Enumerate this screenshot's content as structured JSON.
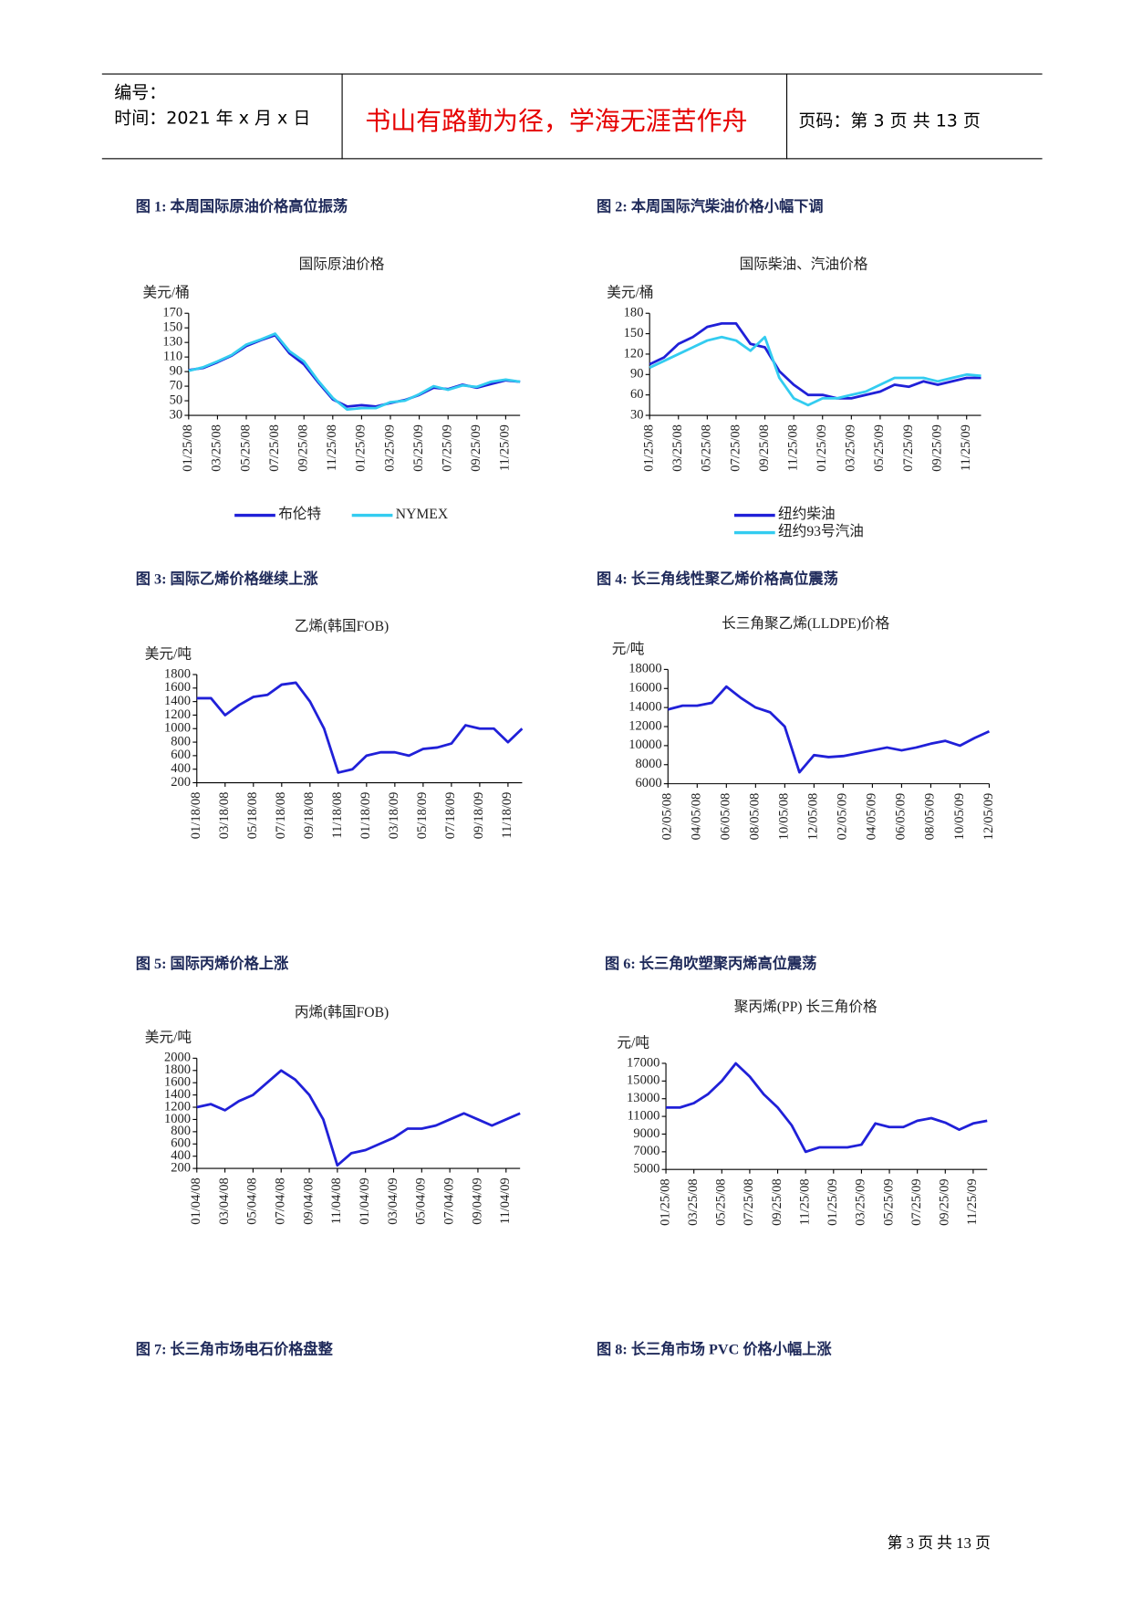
{
  "header": {
    "number_label": "编号：",
    "time": "时间：2021 年 x 月 x 日",
    "motto": "书山有路勤为径，学海无涯苦作舟",
    "page": "页码：第 3 页  共 13 页"
  },
  "captions": [
    "图 1:  本周国际原油价格高位振荡",
    "图 2:  本周国际汽柴油价格小幅下调",
    "图 3:  国际乙烯价格继续上涨",
    "图 4:  长三角线性聚乙烯价格高位震荡",
    "图 5:  国际丙烯价格上涨",
    "图 6:  长三角吹塑聚丙烯高位震荡",
    "图 7:  长三角市场电石价格盘整",
    "图 8:  长三角市场 PVC 价格小幅上涨"
  ],
  "chart_data": [
    {
      "type": "line",
      "title": "国际原油价格",
      "y_label": "美元/桶",
      "categories": [
        "01/25/08",
        null,
        "03/25/08",
        null,
        "05/25/08",
        null,
        "07/25/08",
        null,
        "09/25/08",
        null,
        "11/25/08",
        null,
        "01/25/09",
        null,
        "03/25/09",
        null,
        "05/25/09",
        null,
        "07/25/09",
        null,
        "09/25/09",
        null,
        "11/25/09",
        null
      ],
      "series": [
        {
          "name": "布伦特",
          "color": "#2020d8",
          "values": [
            92,
            95,
            103,
            112,
            125,
            133,
            140,
            115,
            100,
            75,
            52,
            42,
            44,
            42,
            47,
            51,
            58,
            68,
            66,
            72,
            68,
            73,
            78,
            76
          ]
        },
        {
          "name": "NYMEX",
          "color": "#33ccf0",
          "values": [
            91,
            96,
            104,
            113,
            127,
            134,
            142,
            118,
            104,
            77,
            54,
            38,
            40,
            40,
            48,
            50,
            59,
            70,
            65,
            71,
            69,
            76,
            79,
            76
          ]
        }
      ],
      "ylim": [
        30,
        170
      ],
      "yticks": [
        30,
        50,
        70,
        90,
        110,
        130,
        150,
        170
      ],
      "legend": "bottom"
    },
    {
      "type": "line",
      "title": "国际柴油、汽油价格",
      "y_label": "美元/桶",
      "categories": [
        "01/25/08",
        null,
        "03/25/08",
        null,
        "05/25/08",
        null,
        "07/25/08",
        null,
        "09/25/08",
        null,
        "11/25/08",
        null,
        "01/25/09",
        null,
        "03/25/09",
        null,
        "05/25/09",
        null,
        "07/25/09",
        null,
        "09/25/09",
        null,
        "11/25/09",
        null
      ],
      "series": [
        {
          "name": "纽约柴油",
          "color": "#2020d8",
          "values": [
            105,
            115,
            135,
            145,
            160,
            165,
            165,
            135,
            130,
            95,
            75,
            60,
            60,
            55,
            55,
            60,
            65,
            75,
            72,
            80,
            75,
            80,
            85,
            85
          ]
        },
        {
          "name": "纽约93号汽油",
          "color": "#33ccf0",
          "values": [
            100,
            110,
            120,
            130,
            140,
            145,
            140,
            125,
            145,
            85,
            55,
            45,
            55,
            55,
            60,
            65,
            75,
            85,
            85,
            85,
            80,
            85,
            90,
            88
          ]
        }
      ],
      "ylim": [
        30,
        180
      ],
      "yticks": [
        30,
        60,
        90,
        120,
        150,
        180
      ],
      "legend": "bottom"
    },
    {
      "type": "line",
      "title": "乙烯(韩国FOB)",
      "y_label": "美元/吨",
      "categories": [
        "01/18/08",
        null,
        "03/18/08",
        null,
        "05/18/08",
        null,
        "07/18/08",
        null,
        "09/18/08",
        null,
        "11/18/08",
        null,
        "01/18/09",
        null,
        "03/18/09",
        null,
        "05/18/09",
        null,
        "07/18/09",
        null,
        "09/18/09",
        null,
        "11/18/09",
        null
      ],
      "series": [
        {
          "name": "乙烯",
          "color": "#2020d8",
          "values": [
            1450,
            1450,
            1200,
            1350,
            1470,
            1500,
            1650,
            1680,
            1400,
            1000,
            350,
            400,
            600,
            650,
            650,
            600,
            700,
            720,
            780,
            1050,
            1000,
            1000,
            800,
            1000
          ]
        }
      ],
      "ylim": [
        200,
        1800
      ],
      "yticks": [
        200,
        400,
        600,
        800,
        1000,
        1200,
        1400,
        1600,
        1800
      ]
    },
    {
      "type": "line",
      "title": "长三角聚乙烯(LLDPE)价格",
      "y_label": "元/吨",
      "categories": [
        "02/05/08",
        null,
        "04/05/08",
        null,
        "06/05/08",
        null,
        "08/05/08",
        null,
        "10/05/08",
        null,
        "12/05/08",
        null,
        "02/05/09",
        null,
        "04/05/09",
        null,
        "06/05/09",
        null,
        "08/05/09",
        null,
        "10/05/09",
        null,
        "12/05/09"
      ],
      "series": [
        {
          "name": "LLDPE",
          "color": "#2020d8",
          "values": [
            13800,
            14200,
            14200,
            14500,
            16200,
            15000,
            14000,
            13500,
            12000,
            7200,
            9000,
            8800,
            8900,
            9200,
            9500,
            9800,
            9500,
            9800,
            10200,
            10500,
            10000,
            10800,
            11500
          ]
        }
      ],
      "ylim": [
        6000,
        18000
      ],
      "yticks": [
        6000,
        8000,
        10000,
        12000,
        14000,
        16000,
        18000
      ]
    },
    {
      "type": "line",
      "title": "丙烯(韩国FOB)",
      "y_label": "美元/吨",
      "categories": [
        "01/04/08",
        null,
        "03/04/08",
        null,
        "05/04/08",
        null,
        "07/04/08",
        null,
        "09/04/08",
        null,
        "11/04/08",
        null,
        "01/04/09",
        null,
        "03/04/09",
        null,
        "05/04/09",
        null,
        "07/04/09",
        null,
        "09/04/09",
        null,
        "11/04/09",
        null
      ],
      "series": [
        {
          "name": "丙烯",
          "color": "#2020d8",
          "values": [
            1200,
            1250,
            1150,
            1300,
            1400,
            1600,
            1800,
            1650,
            1400,
            1000,
            250,
            450,
            500,
            600,
            700,
            850,
            850,
            900,
            1000,
            1100,
            1000,
            900,
            1000,
            1100
          ]
        }
      ],
      "ylim": [
        200,
        2000
      ],
      "yticks": [
        200,
        400,
        600,
        800,
        1000,
        1200,
        1400,
        1600,
        1800,
        2000
      ]
    },
    {
      "type": "line",
      "title": "聚丙烯(PP)  长三角价格",
      "y_label": "元/吨",
      "categories": [
        "01/25/08",
        null,
        "03/25/08",
        null,
        "05/25/08",
        null,
        "07/25/08",
        null,
        "09/25/08",
        null,
        "11/25/08",
        null,
        "01/25/09",
        null,
        "03/25/09",
        null,
        "05/25/09",
        null,
        "07/25/09",
        null,
        "09/25/09",
        null,
        "11/25/09",
        null
      ],
      "series": [
        {
          "name": "PP",
          "color": "#2020d8",
          "values": [
            12000,
            12000,
            12500,
            13500,
            15000,
            17000,
            15500,
            13500,
            12000,
            10000,
            7000,
            7500,
            7500,
            7500,
            7800,
            10200,
            9800,
            9800,
            10500,
            10800,
            10300,
            9500,
            10200,
            10500
          ]
        }
      ],
      "ylim": [
        5000,
        17000
      ],
      "yticks": [
        5000,
        7000,
        9000,
        11000,
        13000,
        15000,
        17000
      ]
    }
  ],
  "footer": "第 3 页  共 13 页"
}
